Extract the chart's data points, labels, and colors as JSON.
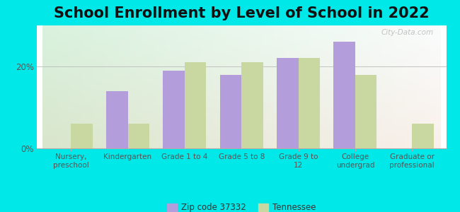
{
  "title": "School Enrollment by Level of School in 2022",
  "categories": [
    "Nursery,\npreschool",
    "Kindergarten",
    "Grade 1 to 4",
    "Grade 5 to 8",
    "Grade 9 to\n12",
    "College\nundergrad",
    "Graduate or\nprofessional"
  ],
  "zip_values": [
    0,
    14,
    19,
    18,
    22,
    26,
    0
  ],
  "tn_values": [
    6,
    6,
    21,
    21,
    22,
    18,
    6
  ],
  "zip_color": "#b39ddb",
  "tn_color": "#c8d8a0",
  "ylim": [
    0,
    30
  ],
  "yticks": [
    0,
    20
  ],
  "ytick_labels": [
    "0%",
    "20%"
  ],
  "outer_bg": "#00e8e8",
  "legend_zip_label": "Zip code 37332",
  "legend_tn_label": "Tennessee",
  "watermark": "City-Data.com",
  "title_fontsize": 15,
  "bar_width": 0.38
}
